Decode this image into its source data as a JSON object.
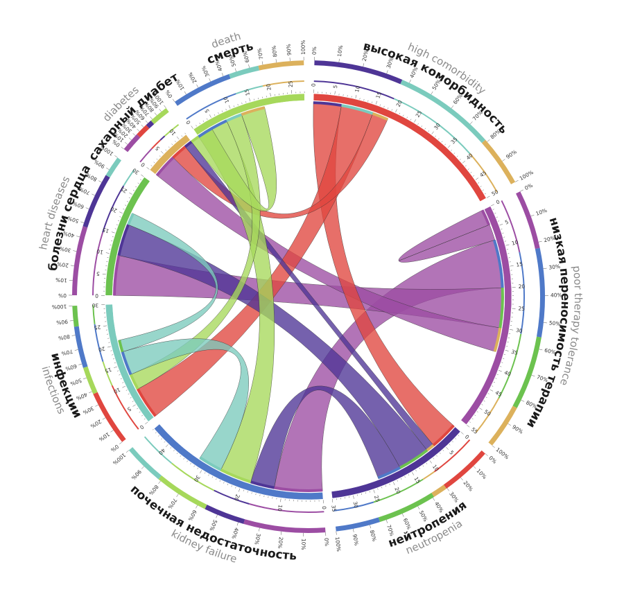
{
  "chart_data": {
    "type": "chord",
    "title": "",
    "colors": {
      "высокая коморбидность": "#e0463f",
      "низкая переносимость терапии": "#9c4da3",
      "нейтропения": "#4e3596",
      "почечная недостаточность": "#4f79c8",
      "инфекции": "#7bcbbd",
      "болезни сердца": "#6cc24f",
      "сахарный диабет": "#dcb15c",
      "смерть": "#a6d85b"
    },
    "groups": [
      {
        "ru": "высокая коморбидность",
        "en": "high comorbidity",
        "total": 50,
        "tick_step": 5
      },
      {
        "ru": "низкая переносимость терапии",
        "en": "poor therapy tolerance",
        "total": 55,
        "tick_step": 5
      },
      {
        "ru": "нейтропения",
        "en": "neutropenia",
        "total": 35,
        "tick_step": 5
      },
      {
        "ru": "почечная недостаточность",
        "en": "kidney failure",
        "total": 45,
        "tick_step": 10
      },
      {
        "ru": "инфекции",
        "en": "infections",
        "total": 30,
        "tick_step": 5
      },
      {
        "ru": "болезни сердца",
        "en": "heart diseases",
        "total": 30,
        "tick_step": 5
      },
      {
        "ru": "сахарный диабет",
        "en": "diabetes",
        "total": 12,
        "tick_step": 5
      },
      {
        "ru": "смерть",
        "en": "death",
        "total": 28,
        "tick_step": 5
      }
    ],
    "links": [
      {
        "source": "низкая переносимость терапии",
        "target": "низкая переносимость терапии",
        "value": 8
      },
      {
        "source": "низкая переносимость терапии",
        "target": "почечная недостаточность",
        "value": 12
      },
      {
        "source": "низкая переносимость терапии",
        "target": "болезни сердца",
        "value": 10
      },
      {
        "source": "низкая переносимость терапии",
        "target": "сахарный диабет",
        "value": 6
      },
      {
        "source": "высокая коморбидность",
        "target": "нейтропения",
        "value": 7
      },
      {
        "source": "высокая коморбидность",
        "target": "инфекции",
        "value": 8
      },
      {
        "source": "высокая коморбидность",
        "target": "сахарный диабет",
        "value": 4
      },
      {
        "source": "нейтропения",
        "target": "сахарный диабет",
        "value": 2
      },
      {
        "source": "нейтропения",
        "target": "болезни сердца",
        "value": 8
      },
      {
        "source": "нейтропения",
        "target": "почечная недостаточность",
        "value": 6
      },
      {
        "source": "смерть",
        "target": "почечная недостаточность",
        "value": 8
      },
      {
        "source": "смерть",
        "target": "инфекции",
        "value": 4
      },
      {
        "source": "смерть",
        "target": "сахарный диабет",
        "value": 6
      },
      {
        "source": "инфекции",
        "target": "почечная недостаточность",
        "value": 6
      },
      {
        "source": "инфекции",
        "target": "болезни сердца",
        "value": 3
      }
    ]
  },
  "percent_ticks": [
    "0%",
    "10%",
    "20%",
    "30%",
    "40%",
    "50%",
    "60%",
    "70%",
    "80%",
    "90%",
    "100%"
  ]
}
